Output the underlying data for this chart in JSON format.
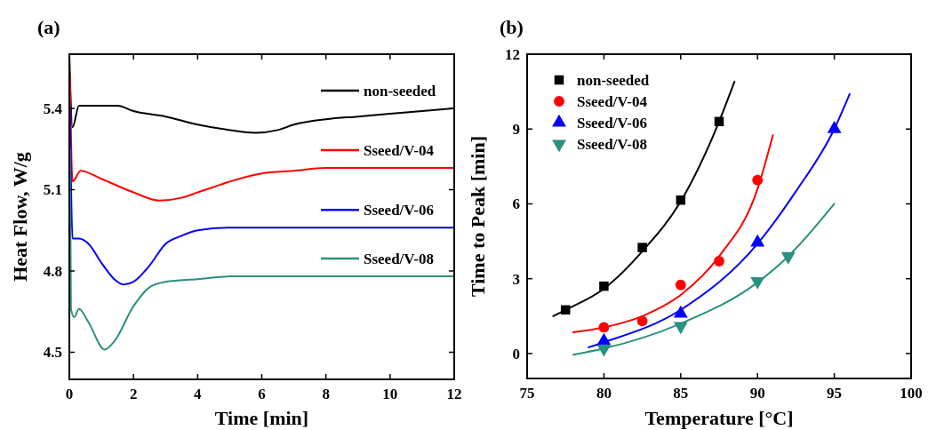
{
  "chart_data": [
    {
      "type": "line",
      "title": "(a)",
      "xlabel": "Time [min]",
      "ylabel": "Heat Flow, W/g",
      "xlim": [
        0,
        12
      ],
      "ylim": [
        4.4,
        5.6
      ],
      "xticks": [
        0,
        2,
        4,
        6,
        8,
        10,
        12
      ],
      "yticks": [
        4.5,
        4.8,
        5.1,
        5.4
      ],
      "legend": "right",
      "grid": false,
      "series": [
        {
          "name": "non-seeded",
          "color": "#000000",
          "x": [
            0,
            0.1,
            0.3,
            0.8,
            1.5,
            2,
            3,
            4,
            5,
            5.8,
            6.5,
            7,
            8,
            9,
            10,
            11,
            12
          ],
          "values": [
            5.6,
            5.33,
            5.41,
            5.41,
            5.41,
            5.39,
            5.37,
            5.34,
            5.32,
            5.31,
            5.32,
            5.34,
            5.36,
            5.37,
            5.38,
            5.39,
            5.4
          ]
        },
        {
          "name": "Sseed/V-04",
          "color": "#ff0000",
          "x": [
            0.02,
            0.1,
            0.35,
            1,
            2,
            2.8,
            3.5,
            4,
            4.5,
            5,
            6,
            7,
            8,
            10,
            12
          ],
          "values": [
            5.52,
            5.13,
            5.17,
            5.14,
            5.09,
            5.06,
            5.07,
            5.09,
            5.11,
            5.13,
            5.16,
            5.17,
            5.18,
            5.18,
            5.18
          ]
        },
        {
          "name": "Sseed/V-06",
          "color": "#0000ff",
          "x": [
            0.02,
            0.1,
            0.3,
            0.6,
            1,
            1.4,
            1.7,
            2,
            2.5,
            3,
            3.5,
            4,
            5,
            12
          ],
          "values": [
            5.41,
            4.92,
            4.92,
            4.9,
            4.83,
            4.77,
            4.75,
            4.76,
            4.82,
            4.9,
            4.93,
            4.95,
            4.96,
            4.96
          ]
        },
        {
          "name": "Sseed/V-08",
          "color": "#2a9080",
          "x": [
            0.02,
            0.05,
            0.15,
            0.3,
            0.6,
            1.1,
            1.4,
            2,
            2.5,
            3,
            4,
            5,
            8,
            12
          ],
          "values": [
            5.25,
            4.66,
            4.63,
            4.66,
            4.61,
            4.51,
            4.54,
            4.67,
            4.74,
            4.76,
            4.77,
            4.78,
            4.78,
            4.78
          ]
        }
      ]
    },
    {
      "type": "scatter",
      "title": "(b)",
      "xlabel": "Temperature [°C]",
      "ylabel": "Time to Peak [min]",
      "xlim": [
        75,
        100
      ],
      "ylim": [
        -1,
        12
      ],
      "xticks": [
        75,
        80,
        85,
        90,
        95,
        100
      ],
      "yticks": [
        0,
        3,
        6,
        9,
        12
      ],
      "legend": "top left",
      "grid": false,
      "series": [
        {
          "name": "non-seeded",
          "color": "#000000",
          "marker": "square",
          "x": [
            77.5,
            80,
            82.5,
            85,
            87.5
          ],
          "values": [
            1.75,
            2.7,
            4.25,
            6.15,
            9.3
          ]
        },
        {
          "name": "Sseed/V-04",
          "color": "#ff0000",
          "marker": "circle",
          "x": [
            80,
            82.5,
            85,
            87.5,
            90
          ],
          "values": [
            1.05,
            1.3,
            2.75,
            3.7,
            6.95
          ]
        },
        {
          "name": "Sseed/V-06",
          "color": "#0000ff",
          "marker": "triangle",
          "x": [
            80,
            85,
            90,
            95
          ],
          "values": [
            0.5,
            1.6,
            4.45,
            9.0
          ]
        },
        {
          "name": "Sseed/V-08",
          "color": "#2a9080",
          "marker": "triangle-down",
          "x": [
            80,
            85,
            90,
            92
          ],
          "values": [
            0.2,
            1.1,
            2.9,
            3.9
          ]
        },
        {
          "type": "line",
          "color": "#000000",
          "x": [
            76.7,
            77.5,
            80,
            82.5,
            85,
            87.5,
            88.5
          ],
          "values": [
            1.5,
            1.75,
            2.6,
            4.1,
            6.1,
            9.3,
            10.9
          ]
        },
        {
          "type": "line",
          "color": "#ff0000",
          "x": [
            78,
            80,
            82.5,
            85,
            87.5,
            90,
            91
          ],
          "values": [
            0.85,
            1.05,
            1.5,
            2.35,
            3.9,
            6.6,
            8.75
          ]
        },
        {
          "type": "line",
          "color": "#0000ff",
          "x": [
            79,
            80,
            85,
            90,
            92.5,
            95,
            96
          ],
          "values": [
            0.25,
            0.45,
            1.75,
            4.4,
            6.5,
            9.0,
            10.4
          ]
        },
        {
          "type": "line",
          "color": "#2a9080",
          "x": [
            78,
            80,
            85,
            90,
            92,
            95
          ],
          "values": [
            -0.05,
            0.2,
            1.2,
            2.85,
            3.9,
            6.0
          ]
        }
      ]
    }
  ]
}
